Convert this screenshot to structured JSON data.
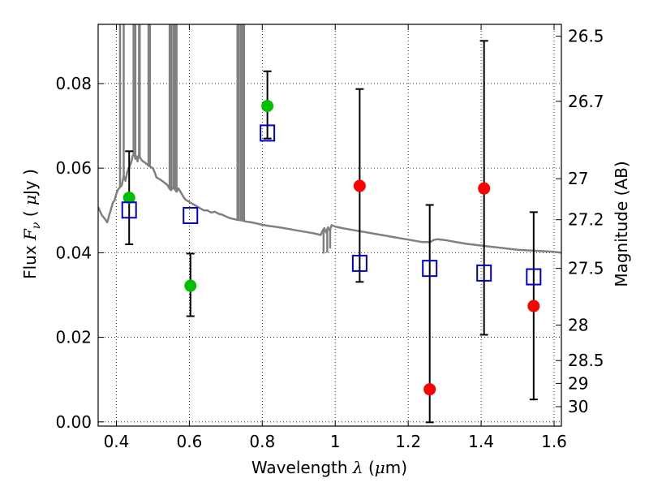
{
  "chart_data": {
    "type": "scatter",
    "xlabel": "Wavelength  λ (μm)",
    "ylabel": "Flux  Fν  ( μJy )",
    "y2label": "Magnitude (AB)",
    "xlim": [
      0.35,
      1.62
    ],
    "ylim": [
      -0.001,
      0.094
    ],
    "grid": true,
    "x_ticks": [
      0.4,
      0.6,
      0.8,
      1.0,
      1.2,
      1.4,
      1.6
    ],
    "x_tick_labels": [
      "0.4",
      "0.6",
      "0.8",
      "1",
      "1.2",
      "1.4",
      "1.6"
    ],
    "y_ticks": [
      0.0,
      0.02,
      0.04,
      0.06,
      0.08
    ],
    "y_tick_labels": [
      "0.00",
      "0.02",
      "0.04",
      "0.06",
      "0.08"
    ],
    "y2_ticks": [
      {
        "flux": 0.0912,
        "label": "26.5"
      },
      {
        "flux": 0.0758,
        "label": "26.7"
      },
      {
        "flux": 0.0575,
        "label": "27"
      },
      {
        "flux": 0.0478,
        "label": "27.2"
      },
      {
        "flux": 0.0363,
        "label": "27.5"
      },
      {
        "flux": 0.0229,
        "label": "28"
      },
      {
        "flux": 0.0145,
        "label": "28.5"
      },
      {
        "flux": 0.0091,
        "label": "29"
      },
      {
        "flux": 0.0036,
        "label": "30"
      }
    ],
    "series": [
      {
        "marker": "circle",
        "color": "#00c000",
        "points": [
          {
            "x": 0.435,
            "y": 0.053,
            "err_lo": 0.042,
            "err_hi": 0.064
          },
          {
            "x": 0.603,
            "y": 0.0322,
            "err_lo": 0.025,
            "err_hi": 0.0398
          },
          {
            "x": 0.814,
            "y": 0.0747,
            "err_lo": 0.067,
            "err_hi": 0.0829
          }
        ]
      },
      {
        "marker": "circle",
        "color": "#ff0000",
        "points": [
          {
            "x": 1.067,
            "y": 0.0558,
            "err_lo": 0.0331,
            "err_hi": 0.0787
          },
          {
            "x": 1.259,
            "y": 0.0077,
            "err_lo": -0.0001,
            "err_hi": 0.0513
          },
          {
            "x": 1.408,
            "y": 0.0552,
            "err_lo": 0.0206,
            "err_hi": 0.0901
          },
          {
            "x": 1.544,
            "y": 0.0274,
            "err_lo": 0.0053,
            "err_hi": 0.0496
          }
        ]
      },
      {
        "marker": "square-open",
        "color": "#0000cc",
        "points": [
          {
            "x": 0.435,
            "y": 0.0501
          },
          {
            "x": 0.603,
            "y": 0.0488
          },
          {
            "x": 0.814,
            "y": 0.0683
          },
          {
            "x": 1.067,
            "y": 0.0375
          },
          {
            "x": 1.259,
            "y": 0.0363
          },
          {
            "x": 1.408,
            "y": 0.0352
          },
          {
            "x": 1.544,
            "y": 0.0343
          }
        ]
      }
    ],
    "model_spectrum": {
      "type": "line",
      "color": "#808080",
      "points": [
        [
          0.35,
          0.0508
        ],
        [
          0.36,
          0.0489
        ],
        [
          0.37,
          0.0478
        ],
        [
          0.375,
          0.0472
        ],
        [
          0.38,
          0.0488
        ],
        [
          0.385,
          0.0502
        ],
        [
          0.39,
          0.0518
        ],
        [
          0.395,
          0.0524
        ],
        [
          0.4,
          0.054
        ],
        [
          0.405,
          0.055
        ],
        [
          0.41,
          0.0555
        ],
        [
          0.415,
          0.056
        ],
        [
          0.42,
          0.0582
        ],
        [
          0.425,
          0.057
        ],
        [
          0.43,
          0.0592
        ],
        [
          0.435,
          0.0602
        ],
        [
          0.44,
          0.0612
        ],
        [
          0.445,
          0.063
        ],
        [
          0.449,
          0.0634
        ],
        [
          0.452,
          0.0622
        ],
        [
          0.455,
          0.0628
        ],
        [
          0.458,
          0.0616
        ],
        [
          0.461,
          0.063
        ],
        [
          0.465,
          0.0625
        ],
        [
          0.47,
          0.0618
        ],
        [
          0.48,
          0.0612
        ],
        [
          0.49,
          0.0605
        ],
        [
          0.5,
          0.06
        ],
        [
          0.505,
          0.059
        ],
        [
          0.51,
          0.0578
        ],
        [
          0.52,
          0.0573
        ],
        [
          0.53,
          0.0567
        ],
        [
          0.54,
          0.056
        ],
        [
          0.545,
          0.0552
        ],
        [
          0.55,
          0.0548
        ],
        [
          0.555,
          0.0555
        ],
        [
          0.56,
          0.055
        ],
        [
          0.565,
          0.0544
        ],
        [
          0.57,
          0.0552
        ],
        [
          0.575,
          0.0545
        ],
        [
          0.58,
          0.0538
        ],
        [
          0.585,
          0.053
        ],
        [
          0.59,
          0.0525
        ],
        [
          0.6,
          0.052
        ],
        [
          0.61,
          0.0515
        ],
        [
          0.62,
          0.051
        ],
        [
          0.63,
          0.0505
        ],
        [
          0.64,
          0.05
        ],
        [
          0.65,
          0.05
        ],
        [
          0.66,
          0.0495
        ],
        [
          0.67,
          0.0497
        ],
        [
          0.68,
          0.0492
        ],
        [
          0.69,
          0.049
        ],
        [
          0.7,
          0.0486
        ],
        [
          0.71,
          0.0482
        ],
        [
          0.72,
          0.048
        ],
        [
          0.73,
          0.0478
        ],
        [
          0.74,
          0.0477
        ],
        [
          0.75,
          0.0475
        ],
        [
          0.76,
          0.0473
        ],
        [
          0.77,
          0.0472
        ],
        [
          0.78,
          0.047
        ],
        [
          0.79,
          0.0468
        ],
        [
          0.8,
          0.0466
        ],
        [
          0.82,
          0.0463
        ],
        [
          0.84,
          0.0461
        ],
        [
          0.86,
          0.0458
        ],
        [
          0.88,
          0.0455
        ],
        [
          0.9,
          0.0452
        ],
        [
          0.92,
          0.0449
        ],
        [
          0.94,
          0.0446
        ],
        [
          0.95,
          0.0444
        ],
        [
          0.96,
          0.0442
        ],
        [
          0.965,
          0.0452
        ],
        [
          0.97,
          0.0458
        ],
        [
          0.975,
          0.0448
        ],
        [
          0.98,
          0.046
        ],
        [
          0.985,
          0.0452
        ],
        [
          0.99,
          0.0465
        ],
        [
          1.0,
          0.0462
        ],
        [
          1.02,
          0.0458
        ],
        [
          1.04,
          0.0455
        ],
        [
          1.06,
          0.0452
        ],
        [
          1.08,
          0.0449
        ],
        [
          1.1,
          0.0446
        ],
        [
          1.12,
          0.0443
        ],
        [
          1.14,
          0.044
        ],
        [
          1.16,
          0.0437
        ],
        [
          1.18,
          0.0434
        ],
        [
          1.2,
          0.0431
        ],
        [
          1.22,
          0.0428
        ],
        [
          1.24,
          0.0425
        ],
        [
          1.26,
          0.0425
        ],
        [
          1.27,
          0.043
        ],
        [
          1.28,
          0.0432
        ],
        [
          1.3,
          0.043
        ],
        [
          1.32,
          0.0427
        ],
        [
          1.34,
          0.0424
        ],
        [
          1.36,
          0.0421
        ],
        [
          1.38,
          0.0419
        ],
        [
          1.4,
          0.0417
        ],
        [
          1.42,
          0.0415
        ],
        [
          1.44,
          0.0413
        ],
        [
          1.46,
          0.0411
        ],
        [
          1.48,
          0.0409
        ],
        [
          1.5,
          0.0407
        ],
        [
          1.52,
          0.0406
        ],
        [
          1.54,
          0.0405
        ],
        [
          1.56,
          0.0404
        ],
        [
          1.58,
          0.0403
        ],
        [
          1.6,
          0.0402
        ],
        [
          1.62,
          0.04
        ]
      ],
      "absorption_spikes": [
        {
          "x": 0.41,
          "y_top": 0.094
        },
        {
          "x": 0.42,
          "y_top": 0.094
        },
        {
          "x": 0.447,
          "y_top": 0.094
        },
        {
          "x": 0.452,
          "y_top": 0.094
        },
        {
          "x": 0.462,
          "y_top": 0.094
        },
        {
          "x": 0.464,
          "y_top": 0.094
        },
        {
          "x": 0.488,
          "y_top": 0.094
        },
        {
          "x": 0.492,
          "y_top": 0.094
        },
        {
          "x": 0.546,
          "y_top": 0.094
        },
        {
          "x": 0.55,
          "y_top": 0.094
        },
        {
          "x": 0.556,
          "y_top": 0.094
        },
        {
          "x": 0.56,
          "y_top": 0.094
        },
        {
          "x": 0.565,
          "y_top": 0.094
        },
        {
          "x": 0.732,
          "y_top": 0.094
        },
        {
          "x": 0.736,
          "y_top": 0.094
        },
        {
          "x": 0.742,
          "y_top": 0.094
        },
        {
          "x": 0.747,
          "y_top": 0.094
        },
        {
          "x": 0.75,
          "y_top": 0.094
        }
      ],
      "dips": [
        {
          "x": 0.968,
          "y": 0.0398
        },
        {
          "x": 0.978,
          "y": 0.04
        },
        {
          "x": 0.986,
          "y": 0.041
        }
      ]
    }
  }
}
